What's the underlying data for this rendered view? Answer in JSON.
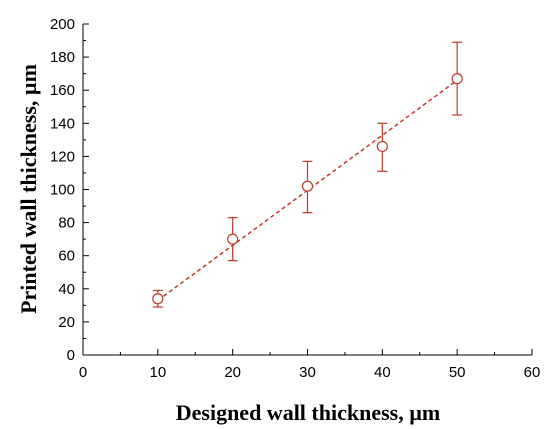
{
  "chart_data": {
    "type": "scatter",
    "title": "",
    "xlabel": "Designed wall thickness, µm",
    "ylabel": "Printed wall thickness, µm",
    "xlim": [
      0,
      60
    ],
    "ylim": [
      0,
      200
    ],
    "xticks": [
      0,
      10,
      20,
      30,
      40,
      50,
      60
    ],
    "yticks": [
      0,
      20,
      40,
      60,
      80,
      100,
      120,
      140,
      160,
      180,
      200
    ],
    "grid": false,
    "legend": "none",
    "series": [
      {
        "marker": "open-circle",
        "color": "#c0392b",
        "points": [
          {
            "x": 10,
            "y": 34,
            "err_low": 29,
            "err_high": 39
          },
          {
            "x": 20,
            "y": 70,
            "err_low": 57,
            "err_high": 83
          },
          {
            "x": 30,
            "y": 102,
            "err_low": 86,
            "err_high": 117
          },
          {
            "x": 40,
            "y": 126,
            "err_low": 111,
            "err_high": 140
          },
          {
            "x": 50,
            "y": 167,
            "err_low": 145,
            "err_high": 189
          }
        ]
      }
    ],
    "fit_line": {
      "style": "dashed",
      "color": "#c0392b",
      "x": [
        10,
        50
      ],
      "y": [
        33,
        166
      ]
    }
  }
}
